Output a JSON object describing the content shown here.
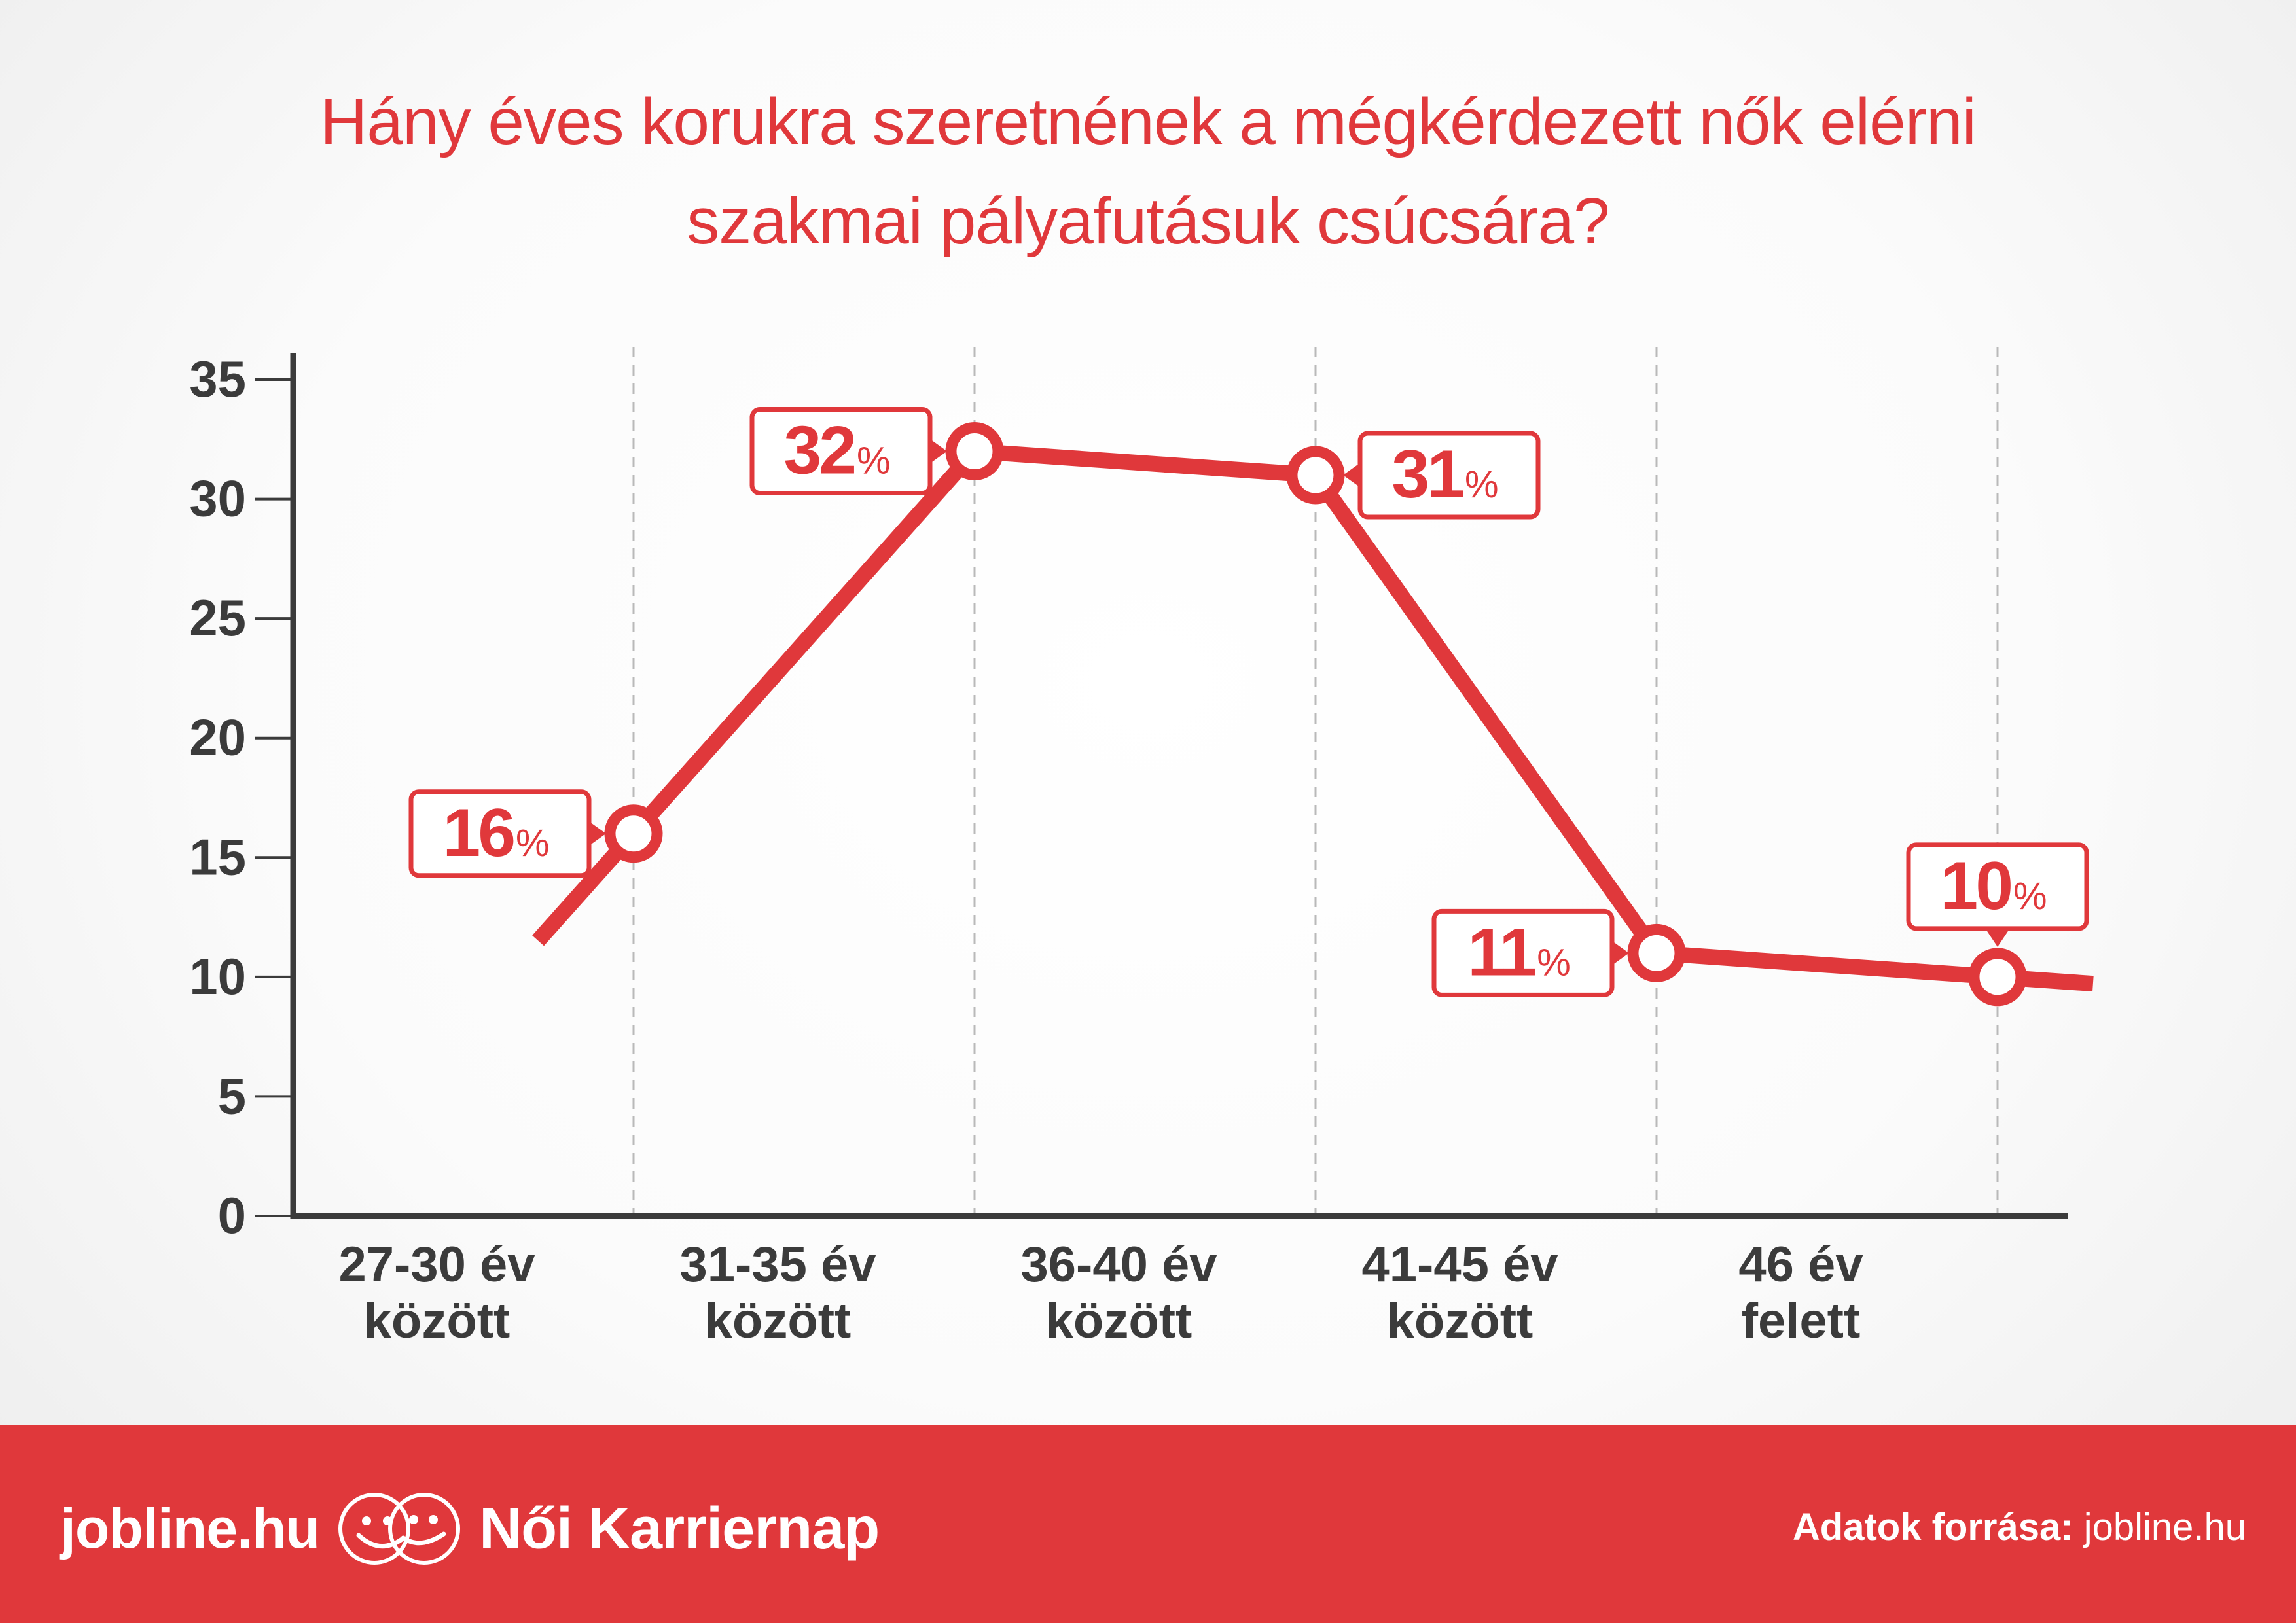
{
  "title": {
    "line1": "Hány éves korukra szeretnének a mégkérdezett nők elérni",
    "line2": "szakmai pályafutásuk csúcsára?"
  },
  "colors": {
    "accent": "#e0383b",
    "axis": "#3b3b3b",
    "grid": "#b9b9b9"
  },
  "footer": {
    "site": "jobline.hu",
    "brand": "Női Karriernap",
    "source_label": "Adatok forrása:",
    "source_value": "jobline.hu",
    "logo_icon": "two-faces-logo-icon"
  },
  "chart_data": {
    "type": "line",
    "categories": [
      [
        "27-30 év",
        "között"
      ],
      [
        "31-35 év",
        "között"
      ],
      [
        "36-40 év",
        "között"
      ],
      [
        "41-45 év",
        "között"
      ],
      [
        "46 év",
        "felett"
      ]
    ],
    "values": [
      16,
      32,
      31,
      11,
      10
    ],
    "value_labels": [
      "16",
      "32",
      "31",
      "11",
      "10"
    ],
    "value_unit": "%",
    "ylim": [
      0,
      35
    ],
    "yticks": [
      0,
      5,
      10,
      15,
      20,
      25,
      30,
      35
    ],
    "grid": "vertical dashed separators",
    "legend": "none"
  }
}
